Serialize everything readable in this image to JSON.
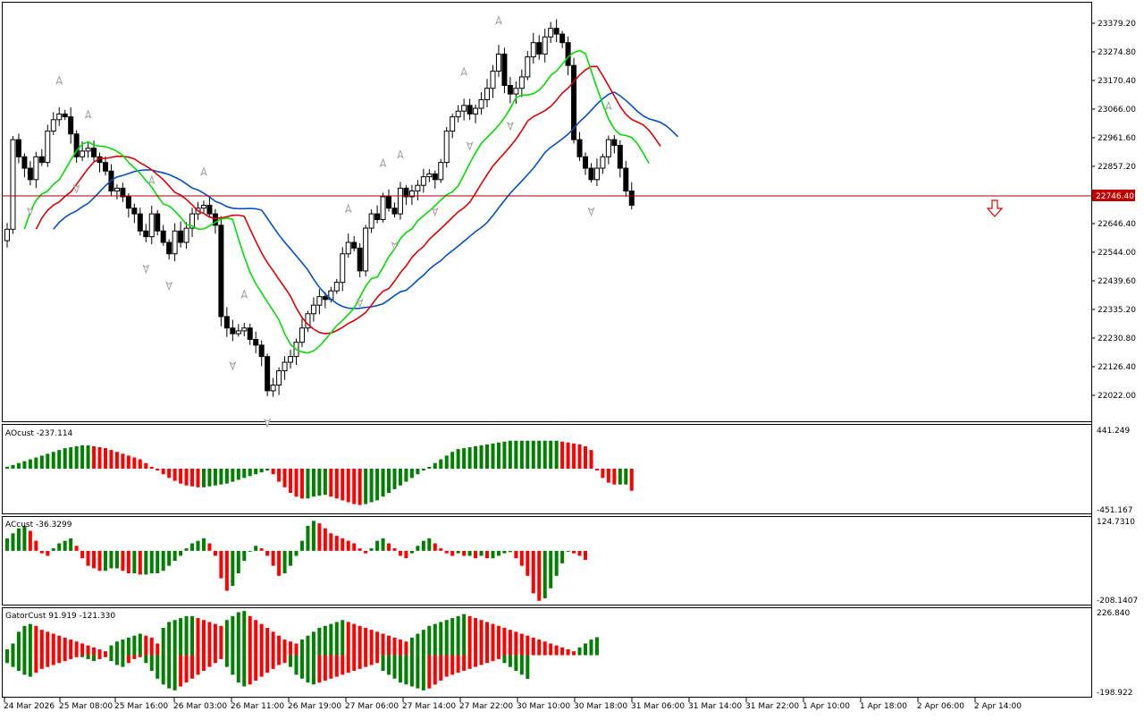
{
  "colors": {
    "bull": "#008000",
    "bear": "#ff0000",
    "jaw": "#0050c8",
    "teeth": "#e00000",
    "lips": "#00e000",
    "bid_line": "#a00000",
    "bid_box": "#c00000",
    "fractal": "#a0a0a0",
    "grid_frame": "#000000"
  },
  "price_axis": {
    "labels": [
      "23379.20",
      "23274.80",
      "23170.40",
      "23066.00",
      "22961.60",
      "22857.20",
      "22646.40",
      "22544.00",
      "22439.60",
      "22335.20",
      "22230.80",
      "22126.40",
      "22022.00"
    ],
    "current_price": "22746.40"
  },
  "indicators": {
    "ao": {
      "label": "AOcust -237.114",
      "max": "441.249",
      "min": "-451.167"
    },
    "ac": {
      "label": "ACcust -36.3299",
      "max": "124.7310",
      "min": "-208.1407"
    },
    "gator": {
      "label": "GatorCust 91.919 -121.330",
      "max": "226.840",
      "min": "-198.922"
    }
  },
  "time_axis": [
    "24 Mar 2026",
    "25 Mar 08:00",
    "25 Mar 16:00",
    "26 Mar 03:00",
    "26 Mar 11:00",
    "26 Mar 19:00",
    "27 Mar 06:00",
    "27 Mar 14:00",
    "27 Mar 22:00",
    "30 Mar 10:00",
    "30 Mar 18:00",
    "31 Mar 06:00",
    "31 Mar 14:00",
    "31 Mar 22:00",
    "1 Apr 10:00",
    "1 Apr 18:00",
    "2 Apr 06:00",
    "2 Apr 14:00"
  ],
  "chart_data": {
    "type": "line",
    "symbol_price_scale": {
      "ylim": [
        21970,
        23440
      ]
    },
    "closes": [
      22646,
      22960,
      22900,
      22860,
      22820,
      22900,
      22880,
      22990,
      23030,
      23050,
      23040,
      22980,
      22900,
      22920,
      22930,
      22900,
      22880,
      22850,
      22780,
      22790,
      22760,
      22720,
      22700,
      22640,
      22620,
      22700,
      22640,
      22600,
      22560,
      22640,
      22600,
      22650,
      22700,
      22720,
      22730,
      22700,
      22660,
      22340,
      22300,
      22280,
      22290,
      22300,
      22260,
      22240,
      22200,
      22080,
      22100,
      22150,
      22180,
      22200,
      22250,
      22300,
      22350,
      22380,
      22410,
      22400,
      22430,
      22460,
      22560,
      22600,
      22580,
      22500,
      22650,
      22700,
      22680,
      22760,
      22720,
      22700,
      22790,
      22760,
      22780,
      22800,
      22830,
      22840,
      22820,
      22880,
      22990,
      23040,
      23060,
      23080,
      23050,
      23070,
      23100,
      23140,
      23200,
      23260,
      23150,
      23120,
      23140,
      23180,
      23250,
      23300,
      23260,
      23320,
      23350,
      23330,
      23300,
      23220,
      22960,
      22900,
      22860,
      22820,
      22860,
      22900,
      22960,
      22940,
      22860,
      22780,
      22730
    ],
    "ao_values": [
      20,
      40,
      60,
      80,
      100,
      120,
      140,
      160,
      180,
      200,
      220,
      230,
      240,
      250,
      250,
      240,
      230,
      220,
      200,
      180,
      160,
      140,
      120,
      100,
      60,
      20,
      -20,
      -60,
      -100,
      -130,
      -160,
      -180,
      -190,
      -200,
      -200,
      -190,
      -180,
      -170,
      -160,
      -140,
      -120,
      -100,
      -80,
      -60,
      -40,
      -20,
      -60,
      -140,
      -200,
      -260,
      -300,
      -320,
      -320,
      -300,
      -290,
      -280,
      -300,
      -320,
      -340,
      -360,
      -380,
      -390,
      -380,
      -360,
      -340,
      -300,
      -260,
      -220,
      -180,
      -140,
      -100,
      -60,
      -20,
      20,
      60,
      100,
      140,
      180,
      210,
      220,
      230,
      240,
      250,
      260,
      270,
      280,
      290,
      300,
      300,
      300,
      300,
      300,
      300,
      300,
      300,
      300,
      290,
      280,
      270,
      260,
      240,
      200,
      -20,
      -100,
      -150,
      -170,
      -170,
      -170,
      -237.114
    ],
    "ac_values": [
      50,
      70,
      90,
      100,
      80,
      40,
      -10,
      -20,
      10,
      30,
      40,
      50,
      20,
      -30,
      -60,
      -70,
      -80,
      -80,
      -70,
      -70,
      -80,
      -90,
      -90,
      -95,
      -95,
      -90,
      -90,
      -80,
      -60,
      -40,
      -20,
      10,
      30,
      40,
      50,
      30,
      -20,
      -110,
      -160,
      -140,
      -90,
      -40,
      0,
      20,
      10,
      -20,
      -60,
      -100,
      -90,
      -60,
      -20,
      40,
      100,
      120,
      110,
      90,
      70,
      60,
      50,
      40,
      30,
      10,
      -10,
      10,
      40,
      50,
      30,
      10,
      -20,
      -30,
      -10,
      20,
      40,
      50,
      30,
      10,
      -10,
      -20,
      -10,
      -20,
      -20,
      -30,
      -20,
      -30,
      -30,
      -20,
      -10,
      -5,
      -30,
      -60,
      -100,
      -170,
      -200,
      -190,
      -150,
      -100,
      -50,
      0,
      -10,
      -20,
      -36.3299
    ],
    "gator_upper": [
      30,
      60,
      120,
      150,
      160,
      150,
      130,
      120,
      110,
      100,
      90,
      80,
      70,
      60,
      50,
      40,
      30,
      20,
      50,
      70,
      80,
      90,
      100,
      110,
      100,
      90,
      60,
      140,
      170,
      180,
      190,
      200,
      200,
      190,
      180,
      170,
      160,
      150,
      180,
      200,
      220,
      226,
      200,
      180,
      160,
      140,
      120,
      100,
      80,
      70,
      60,
      80,
      100,
      120,
      140,
      150,
      160,
      170,
      180,
      170,
      160,
      150,
      140,
      130,
      120,
      110,
      100,
      90,
      80,
      70,
      90,
      110,
      130,
      150,
      160,
      170,
      180,
      190,
      200,
      210,
      200,
      190,
      180,
      170,
      160,
      150,
      140,
      130,
      120,
      110,
      100,
      90,
      80,
      70,
      60,
      50,
      40,
      30,
      20,
      40,
      60,
      80,
      91.919
    ],
    "gator_lower": [
      -40,
      -60,
      -80,
      -100,
      -110,
      -90,
      -70,
      -60,
      -50,
      -40,
      -30,
      -20,
      -10,
      -10,
      -20,
      -30,
      -20,
      -10,
      -30,
      -50,
      -60,
      -40,
      -20,
      -10,
      -40,
      -80,
      -120,
      -150,
      -170,
      -180,
      -160,
      -140,
      -120,
      -100,
      -80,
      -60,
      -40,
      -20,
      -60,
      -100,
      -140,
      -160,
      -150,
      -130,
      -110,
      -90,
      -70,
      -50,
      -40,
      -60,
      -100,
      -120,
      -140,
      -150,
      -140,
      -130,
      -120,
      -110,
      -100,
      -90,
      -80,
      -70,
      -60,
      -50,
      -40,
      -80,
      -100,
      -120,
      -140,
      -150,
      -160,
      -170,
      -180,
      -170,
      -150,
      -130,
      -110,
      -100,
      -90,
      -80,
      -70,
      -60,
      -50,
      -40,
      -30,
      -20,
      -40,
      -60,
      -80,
      -100,
      -121.33
    ]
  }
}
